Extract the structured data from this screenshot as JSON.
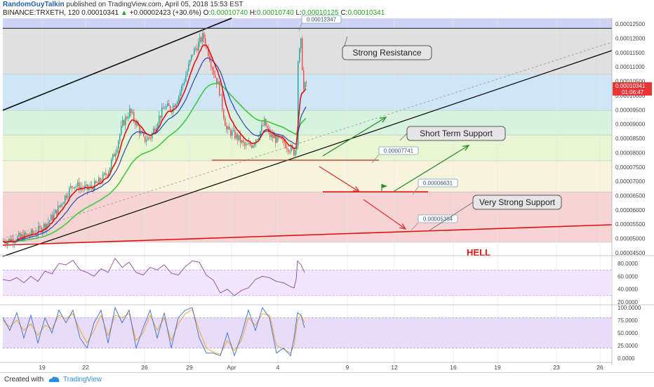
{
  "header": {
    "author": "RandomGuyTalkin",
    "published": "published on TradingView.com, April 05, 2018 15:53 EST",
    "symbol": "BINANCE:TRXETH, 120",
    "price": "0.00010341",
    "change": "+0.00002423 (+30.6%)",
    "o_label": "O:",
    "o_val": "0.00010740",
    "h_label": "H:",
    "h_val": "0.00010740",
    "l_label": "L:",
    "l_val": "0.00010125",
    "c_label": "C:",
    "c_val": "0.00010341"
  },
  "footer": {
    "created_with": "Created with",
    "brand": "TradingView"
  },
  "colors": {
    "up": "#26a69a",
    "down": "#ef5350",
    "ema_red": "#e01010",
    "ema_blue": "#2845b8",
    "ema_green": "#3ec93e",
    "trend": "#000000",
    "support_red": "#e01010",
    "arrow_green": "#2e8b2e",
    "arrow_red": "#e03030",
    "price_tag": "#e83434"
  },
  "chart_data": [
    {
      "type": "candlestick",
      "symbol": "TRXETH",
      "interval": "120",
      "x_ticks": [
        "19",
        "22",
        "26",
        "29",
        "Apr",
        "4",
        "9",
        "12",
        "16",
        "19",
        "23",
        "26"
      ],
      "y_ticks": [
        "0.00012500",
        "0.00012000",
        "0.00011500",
        "0.00011000",
        "0.00010500",
        "0.00010000",
        "0.00009500",
        "0.00009000",
        "0.00008500",
        "0.00008000",
        "0.00007500",
        "0.00007000",
        "0.00006500",
        "0.00006000",
        "0.00005500",
        "0.00005000",
        "0.00004500"
      ],
      "ylim": [
        4.45e-05,
        0.000127
      ],
      "close_path": [
        [
          0,
          4.9e-05
        ],
        [
          10,
          4.95e-05
        ],
        [
          20,
          5.02e-05
        ],
        [
          30,
          5.08e-05
        ],
        [
          40,
          5.15e-05
        ],
        [
          50,
          5.28e-05
        ],
        [
          60,
          5.48e-05
        ],
        [
          70,
          5.75e-05
        ],
        [
          80,
          6.12e-05
        ],
        [
          90,
          6.55e-05
        ],
        [
          100,
          6.9e-05
        ],
        [
          110,
          6.8e-05
        ],
        [
          120,
          6.72e-05
        ],
        [
          130,
          6.85e-05
        ],
        [
          140,
          7.05e-05
        ],
        [
          150,
          7.4e-05
        ],
        [
          160,
          8.1e-05
        ],
        [
          170,
          9e-05
        ],
        [
          180,
          9.45e-05
        ],
        [
          190,
          9e-05
        ],
        [
          200,
          8.45e-05
        ],
        [
          210,
          8.55e-05
        ],
        [
          220,
          9.15e-05
        ],
        [
          230,
          9.6e-05
        ],
        [
          240,
          9.55e-05
        ],
        [
          250,
          0.0001
        ],
        [
          260,
          0.000107
        ],
        [
          270,
          0.000115
        ],
        [
          278,
          0.000118
        ],
        [
          285,
          0.000121
        ],
        [
          292,
          0.000115
        ],
        [
          300,
          0.000108
        ],
        [
          307,
          0.000103
        ],
        [
          312,
          9.6e-05
        ],
        [
          318,
          8.8e-05
        ],
        [
          325,
          8.7e-05
        ],
        [
          335,
          8.5e-05
        ],
        [
          345,
          8.2e-05
        ],
        [
          355,
          8.3e-05
        ],
        [
          365,
          8.7e-05
        ],
        [
          372,
          9.05e-05
        ],
        [
          380,
          8.6e-05
        ],
        [
          390,
          8.45e-05
        ],
        [
          400,
          8.35e-05
        ],
        [
          408,
          8.15e-05
        ],
        [
          415,
          8e-05
        ],
        [
          418,
          8.4e-05
        ],
        [
          420,
          0.000112
        ],
        [
          424,
          0.0001185
        ],
        [
          428,
          0.000102
        ],
        [
          432,
          0.0001045
        ]
      ],
      "levels": [
        {
          "price": 0.00012347,
          "label": "0.00012347"
        },
        {
          "price": 7.741e-05,
          "label": "0.00007741"
        },
        {
          "price": 6.631e-05,
          "label": "0.00006631"
        },
        {
          "price": 5.364e-05,
          "label": "0.00005364"
        }
      ],
      "current_price": "0.00010341",
      "countdown": "01:06:47",
      "annotations": [
        "Strong Resistance",
        "Short Term Support",
        "Very Strong Support",
        "HELL"
      ]
    },
    {
      "type": "line",
      "name_hidden": "RSI",
      "y_ticks": [
        "80.0000",
        "60.0000",
        "40.0000",
        "20.0000"
      ],
      "ylim": [
        20,
        90
      ],
      "band": [
        30,
        70
      ],
      "values": [
        [
          0,
          55
        ],
        [
          10,
          53
        ],
        [
          20,
          58
        ],
        [
          30,
          50
        ],
        [
          40,
          60
        ],
        [
          50,
          52
        ],
        [
          60,
          68
        ],
        [
          70,
          64
        ],
        [
          80,
          80
        ],
        [
          90,
          78
        ],
        [
          100,
          85
        ],
        [
          110,
          70
        ],
        [
          120,
          66
        ],
        [
          130,
          60
        ],
        [
          140,
          72
        ],
        [
          150,
          66
        ],
        [
          160,
          88
        ],
        [
          170,
          74
        ],
        [
          180,
          82
        ],
        [
          190,
          66
        ],
        [
          200,
          62
        ],
        [
          210,
          74
        ],
        [
          220,
          70
        ],
        [
          230,
          78
        ],
        [
          240,
          65
        ],
        [
          250,
          62
        ],
        [
          260,
          75
        ],
        [
          270,
          84
        ],
        [
          280,
          82
        ],
        [
          290,
          62
        ],
        [
          300,
          54
        ],
        [
          310,
          34
        ],
        [
          320,
          40
        ],
        [
          330,
          30
        ],
        [
          340,
          38
        ],
        [
          350,
          42
        ],
        [
          360,
          55
        ],
        [
          370,
          60
        ],
        [
          380,
          58
        ],
        [
          390,
          52
        ],
        [
          400,
          50
        ],
        [
          410,
          44
        ],
        [
          415,
          42
        ],
        [
          418,
          55
        ],
        [
          420,
          84
        ],
        [
          425,
          78
        ],
        [
          430,
          66
        ]
      ]
    },
    {
      "type": "line",
      "name_hidden": "Stochastic RSI",
      "y_ticks": [
        "100.0000",
        "75.0000",
        "50.0000",
        "25.0000",
        "0.0000"
      ],
      "ylim": [
        0,
        100
      ],
      "band": [
        20,
        80
      ],
      "k": [
        [
          0,
          80
        ],
        [
          10,
          55
        ],
        [
          20,
          90
        ],
        [
          30,
          40
        ],
        [
          40,
          85
        ],
        [
          50,
          30
        ],
        [
          60,
          80
        ],
        [
          70,
          50
        ],
        [
          80,
          95
        ],
        [
          90,
          70
        ],
        [
          100,
          95
        ],
        [
          110,
          40
        ],
        [
          120,
          20
        ],
        [
          130,
          70
        ],
        [
          140,
          95
        ],
        [
          150,
          30
        ],
        [
          160,
          100
        ],
        [
          170,
          70
        ],
        [
          180,
          95
        ],
        [
          190,
          20
        ],
        [
          200,
          60
        ],
        [
          210,
          95
        ],
        [
          220,
          40
        ],
        [
          230,
          90
        ],
        [
          240,
          20
        ],
        [
          250,
          80
        ],
        [
          260,
          95
        ],
        [
          270,
          100
        ],
        [
          280,
          40
        ],
        [
          290,
          10
        ],
        [
          300,
          10
        ],
        [
          310,
          5
        ],
        [
          320,
          50
        ],
        [
          330,
          5
        ],
        [
          340,
          45
        ],
        [
          350,
          95
        ],
        [
          360,
          55
        ],
        [
          370,
          100
        ],
        [
          380,
          80
        ],
        [
          390,
          10
        ],
        [
          400,
          20
        ],
        [
          410,
          5
        ],
        [
          415,
          40
        ],
        [
          420,
          90
        ],
        [
          425,
          85
        ],
        [
          430,
          60
        ]
      ],
      "d": [
        [
          0,
          75
        ],
        [
          10,
          62
        ],
        [
          20,
          75
        ],
        [
          30,
          55
        ],
        [
          40,
          68
        ],
        [
          50,
          45
        ],
        [
          60,
          65
        ],
        [
          70,
          58
        ],
        [
          80,
          85
        ],
        [
          90,
          78
        ],
        [
          100,
          88
        ],
        [
          110,
          55
        ],
        [
          120,
          30
        ],
        [
          130,
          55
        ],
        [
          140,
          85
        ],
        [
          150,
          45
        ],
        [
          160,
          85
        ],
        [
          170,
          80
        ],
        [
          180,
          88
        ],
        [
          190,
          35
        ],
        [
          200,
          50
        ],
        [
          210,
          85
        ],
        [
          220,
          55
        ],
        [
          230,
          80
        ],
        [
          240,
          35
        ],
        [
          250,
          68
        ],
        [
          260,
          88
        ],
        [
          270,
          96
        ],
        [
          280,
          55
        ],
        [
          290,
          20
        ],
        [
          300,
          12
        ],
        [
          310,
          8
        ],
        [
          320,
          35
        ],
        [
          330,
          15
        ],
        [
          340,
          35
        ],
        [
          350,
          80
        ],
        [
          360,
          65
        ],
        [
          370,
          88
        ],
        [
          380,
          85
        ],
        [
          390,
          25
        ],
        [
          400,
          18
        ],
        [
          410,
          10
        ],
        [
          415,
          25
        ],
        [
          420,
          75
        ],
        [
          425,
          85
        ],
        [
          430,
          70
        ]
      ]
    }
  ]
}
